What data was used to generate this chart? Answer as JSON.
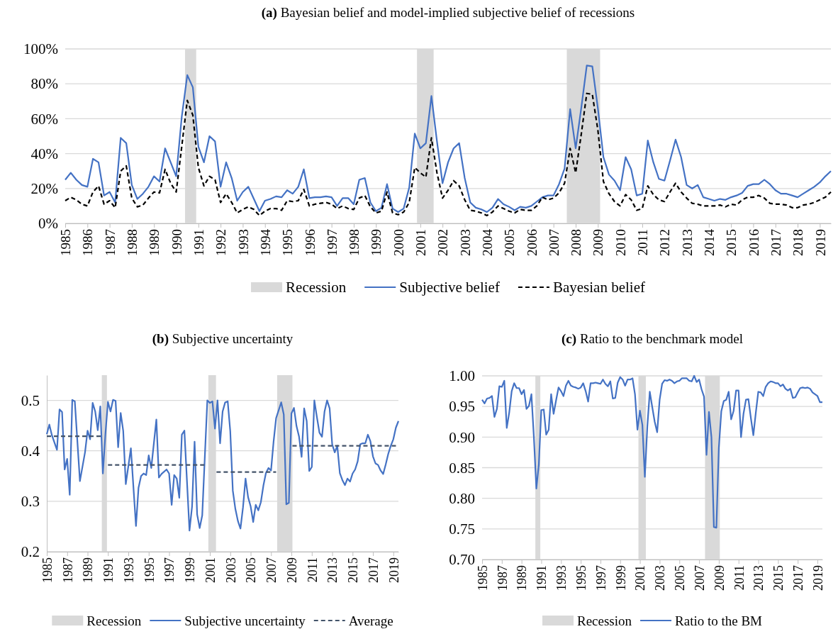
{
  "chart_data": [
    {
      "type": "line",
      "title": "(a) Bayesian belief and model-implied subjective belief of recessions",
      "legend": "bottom",
      "grid": "y",
      "x": [
        1985,
        1985.25,
        1985.5,
        1985.75,
        1986,
        1986.25,
        1986.5,
        1986.75,
        1987,
        1987.25,
        1987.5,
        1987.75,
        1988,
        1988.25,
        1988.5,
        1988.75,
        1989,
        1989.25,
        1989.5,
        1989.75,
        1990,
        1990.25,
        1990.5,
        1990.75,
        1991,
        1991.25,
        1991.5,
        1991.75,
        1992,
        1992.25,
        1992.5,
        1992.75,
        1993,
        1993.25,
        1993.5,
        1993.75,
        1994,
        1994.25,
        1994.5,
        1994.75,
        1995,
        1995.25,
        1995.5,
        1995.75,
        1996,
        1996.25,
        1996.5,
        1996.75,
        1997,
        1997.25,
        1997.5,
        1997.75,
        1998,
        1998.25,
        1998.5,
        1998.75,
        1999,
        1999.25,
        1999.5,
        1999.75,
        2000,
        2000.25,
        2000.5,
        2000.75,
        2001,
        2001.25,
        2001.5,
        2001.75,
        2002,
        2002.25,
        2002.5,
        2002.75,
        2003,
        2003.25,
        2003.5,
        2003.75,
        2004,
        2004.25,
        2004.5,
        2004.75,
        2005,
        2005.25,
        2005.5,
        2005.75,
        2006,
        2006.25,
        2006.5,
        2006.75,
        2007,
        2007.25,
        2007.5,
        2007.75,
        2008,
        2008.25,
        2008.5,
        2008.75,
        2009,
        2009.25,
        2009.5,
        2009.75,
        2010,
        2010.25,
        2010.5,
        2010.75,
        2011,
        2011.25,
        2011.5,
        2011.75,
        2012,
        2012.25,
        2012.5,
        2012.75,
        2013,
        2013.25,
        2013.5,
        2013.75,
        2014,
        2014.25,
        2014.5,
        2014.75,
        2015,
        2015.25,
        2015.5,
        2015.75,
        2016,
        2016.25,
        2016.5,
        2016.75,
        2017,
        2017.25,
        2017.5,
        2017.75,
        2018,
        2018.25,
        2018.5,
        2018.75,
        2019,
        2019.25,
        2019.5
      ],
      "xlim": [
        1985,
        2019.5
      ],
      "xticks": [
        1985,
        1986,
        1987,
        1988,
        1989,
        1990,
        1991,
        1992,
        1993,
        1994,
        1995,
        1996,
        1997,
        1998,
        1999,
        2000,
        2001,
        2002,
        2003,
        2004,
        2005,
        2006,
        2007,
        2008,
        2009,
        2010,
        2011,
        2012,
        2013,
        2014,
        2015,
        2016,
        2017,
        2018,
        2019
      ],
      "ylim": [
        0,
        100
      ],
      "yticks": [
        {
          "value": 0,
          "label": "0%"
        },
        {
          "value": 20,
          "label": "20%"
        },
        {
          "value": 40,
          "label": "40%"
        },
        {
          "value": 60,
          "label": "60%"
        },
        {
          "value": 80,
          "label": "80%"
        },
        {
          "value": 100,
          "label": "100%"
        }
      ],
      "bands": [
        {
          "axis": "x",
          "from": 1990.4,
          "to": 1990.9,
          "label": "Recession",
          "color": "#d9d9d9"
        },
        {
          "axis": "x",
          "from": 2000.85,
          "to": 2001.6,
          "color": "#d9d9d9"
        },
        {
          "axis": "x",
          "from": 2007.6,
          "to": 2009.1,
          "color": "#d9d9d9"
        }
      ],
      "series": [
        {
          "name": "Subjective belief",
          "color": "#4472c4",
          "line_style": "solid",
          "values": [
            25,
            29,
            25,
            22,
            21,
            37,
            35,
            16,
            18,
            12,
            49,
            46,
            22,
            14,
            17,
            21,
            27,
            24,
            43,
            35,
            27,
            61,
            85,
            78,
            44,
            35,
            50,
            47,
            21,
            35,
            26,
            13,
            18,
            21,
            14,
            7,
            13,
            14,
            15.5,
            15,
            19,
            17,
            21,
            31,
            14.5,
            15,
            15,
            15.5,
            15,
            10,
            14.5,
            14.5,
            11,
            25,
            26,
            12,
            7,
            9,
            22.5,
            8.5,
            6.5,
            8.5,
            20.5,
            51.5,
            43,
            46,
            73,
            47,
            23,
            35,
            43,
            46,
            26,
            12,
            9,
            8,
            6.5,
            9,
            14,
            11,
            9.5,
            7.5,
            9.5,
            9,
            10,
            12.5,
            15,
            16,
            16,
            22.5,
            31.5,
            65.5,
            43,
            66,
            90.5,
            90,
            66,
            38,
            28,
            24.5,
            19,
            38,
            31,
            16,
            17,
            47.5,
            35,
            25.5,
            24.5,
            36,
            48,
            38,
            22,
            20,
            22,
            15,
            14,
            13,
            14,
            13.5,
            15,
            16,
            17.5,
            21.5,
            22.5,
            22.5,
            25,
            22.5,
            19,
            17,
            17,
            16,
            15,
            17,
            19,
            21,
            23.5,
            27,
            30
          ]
        },
        {
          "name": "Bayesian belief",
          "color": "#000000",
          "line_style": "dashed",
          "values": [
            13,
            15,
            13.5,
            11,
            10,
            18,
            21.5,
            11,
            13,
            9,
            30,
            33,
            14.5,
            9.5,
            10.5,
            14.5,
            18,
            17.5,
            31,
            23,
            18,
            44,
            70.5,
            62,
            32,
            21.5,
            27,
            25,
            12,
            17,
            12,
            6,
            8,
            9.5,
            8,
            4.5,
            7,
            8.5,
            8.5,
            7.5,
            13,
            12.5,
            13,
            19.5,
            10,
            11,
            11.5,
            12,
            11,
            8.5,
            10,
            8.5,
            8,
            14.5,
            16,
            9.5,
            6,
            7,
            18,
            6,
            5,
            6.5,
            12,
            32,
            29,
            26.5,
            49,
            29,
            14.5,
            19,
            24.5,
            21.5,
            13.5,
            7.5,
            7,
            6,
            4.5,
            6.5,
            10,
            8.5,
            7,
            6,
            8,
            7.5,
            7.5,
            10,
            15,
            13.5,
            14.5,
            17.5,
            23,
            43,
            29,
            51,
            74.5,
            74,
            53.5,
            24,
            17,
            12.5,
            10,
            16.5,
            13.5,
            7.5,
            8.5,
            21.5,
            16.5,
            13.5,
            12.5,
            18,
            23,
            18,
            14.5,
            11.5,
            11,
            10,
            10,
            10,
            10.5,
            9.5,
            11,
            10.5,
            13.5,
            15,
            15,
            16,
            14.5,
            11.5,
            11,
            11,
            10.5,
            9,
            9,
            10.5,
            11,
            12,
            13.5,
            15,
            18
          ]
        }
      ]
    },
    {
      "type": "line",
      "title": "(b) Subjective uncertainty",
      "legend": "bottom",
      "grid": "y",
      "xlim": [
        1985,
        2019.5
      ],
      "xticks": [
        1985,
        1987,
        1989,
        1991,
        1993,
        1995,
        1997,
        1999,
        2001,
        2003,
        2005,
        2007,
        2009,
        2011,
        2013,
        2015,
        2017,
        2019
      ],
      "ylim": [
        0.2,
        0.55
      ],
      "yticks": [
        0.2,
        0.3,
        0.4,
        0.5
      ],
      "bands": [
        {
          "axis": "x",
          "from": 1990.4,
          "to": 1990.9,
          "color": "#d9d9d9"
        },
        {
          "axis": "x",
          "from": 2000.85,
          "to": 2001.6,
          "color": "#d9d9d9"
        },
        {
          "axis": "x",
          "from": 2007.6,
          "to": 2009.1,
          "label": "Recession",
          "color": "#d9d9d9"
        }
      ],
      "series": [
        {
          "name": "Subjective uncertainty",
          "color": "#4472c4",
          "line_style": "solid",
          "x": [
            1985,
            1985.25,
            1985.5,
            1986,
            1986.25,
            1986.5,
            1986.75,
            1987,
            1987.25,
            1987.5,
            1987.75,
            1988.25,
            1988.75,
            1989,
            1989.25,
            1989.5,
            1989.75,
            1990,
            1990.25,
            1990.5,
            1990.75,
            1991,
            1991.25,
            1991.5,
            1991.75,
            1992,
            1992.25,
            1992.5,
            1992.75,
            1993.25,
            1993.75,
            1994,
            1994.25,
            1994.5,
            1994.75,
            1995,
            1995.25,
            1995.75,
            1996,
            1996.25,
            1996.75,
            1997,
            1997.25,
            1997.5,
            1997.75,
            1998,
            1998.25,
            1998.5,
            1999,
            1999.25,
            1999.5,
            1999.75,
            2000,
            2000.25,
            2000.75,
            2001,
            2001.25,
            2001.5,
            2001.75,
            2002,
            2002.25,
            2002.5,
            2002.75,
            2003,
            2003.25,
            2003.5,
            2003.75,
            2004,
            2004.25,
            2004.5,
            2004.75,
            2005,
            2005.25,
            2005.5,
            2005.75,
            2006,
            2006.25,
            2006.5,
            2006.75,
            2007,
            2007.25,
            2007.5,
            2008,
            2008.25,
            2008.5,
            2008.75,
            2009,
            2009.25,
            2009.5,
            2009.75,
            2010,
            2010.25,
            2010.5,
            2010.75,
            2011,
            2011.25,
            2011.5,
            2011.75,
            2012,
            2012.25,
            2012.5,
            2012.75,
            2013,
            2013.25,
            2013.5,
            2013.75,
            2014,
            2014.25,
            2014.5,
            2014.75,
            2015,
            2015.25,
            2015.5,
            2015.75,
            2016,
            2016.25,
            2016.5,
            2016.75,
            2017,
            2017.25,
            2017.5,
            2017.75,
            2018,
            2018.25,
            2018.5,
            2018.75,
            2019,
            2019.25,
            2019.5
          ],
          "values": [
            0.433,
            0.452,
            0.431,
            0.402,
            0.482,
            0.477,
            0.363,
            0.384,
            0.313,
            0.501,
            0.498,
            0.34,
            0.397,
            0.44,
            0.423,
            0.495,
            0.478,
            0.441,
            0.488,
            0.355,
            0.433,
            0.497,
            0.478,
            0.501,
            0.499,
            0.407,
            0.475,
            0.439,
            0.334,
            0.405,
            0.251,
            0.327,
            0.35,
            0.355,
            0.352,
            0.391,
            0.366,
            0.462,
            0.347,
            0.354,
            0.363,
            0.355,
            0.293,
            0.352,
            0.345,
            0.307,
            0.432,
            0.44,
            0.242,
            0.289,
            0.418,
            0.274,
            0.247,
            0.272,
            0.5,
            0.495,
            0.498,
            0.444,
            0.5,
            0.415,
            0.478,
            0.496,
            0.498,
            0.439,
            0.321,
            0.285,
            0.261,
            0.246,
            0.288,
            0.345,
            0.308,
            0.29,
            0.259,
            0.293,
            0.282,
            0.298,
            0.331,
            0.356,
            0.366,
            0.361,
            0.418,
            0.465,
            0.496,
            0.472,
            0.294,
            0.297,
            0.474,
            0.485,
            0.449,
            0.428,
            0.388,
            0.484,
            0.459,
            0.36,
            0.368,
            0.5,
            0.467,
            0.436,
            0.428,
            0.478,
            0.5,
            0.484,
            0.413,
            0.397,
            0.41,
            0.356,
            0.342,
            0.332,
            0.345,
            0.339,
            0.355,
            0.363,
            0.379,
            0.413,
            0.415,
            0.415,
            0.432,
            0.419,
            0.389,
            0.375,
            0.372,
            0.361,
            0.354,
            0.373,
            0.394,
            0.41,
            0.423,
            0.446,
            0.459
          ]
        },
        {
          "name": "Average",
          "color": "#44546a",
          "line_style": "dashed",
          "x": [
            1985,
            1990.4,
            1990.7,
            1991,
            2000.7,
            2001.2,
            2001.65,
            2007.5,
            2008.5,
            2009.1,
            2019.5
          ],
          "values": [
            0.429,
            0.429,
            null,
            0.372,
            0.372,
            null,
            0.358,
            0.358,
            null,
            0.41,
            0.41
          ]
        }
      ]
    },
    {
      "type": "line",
      "title": "(c) Ratio to the benchmark model",
      "legend": "bottom",
      "grid": "y",
      "x": [
        1985,
        1985.25,
        1985.5,
        1985.75,
        1986,
        1986.25,
        1986.5,
        1986.75,
        1987,
        1987.25,
        1987.5,
        1987.75,
        1988,
        1988.25,
        1988.5,
        1988.75,
        1989,
        1989.25,
        1989.5,
        1989.75,
        1990,
        1990.25,
        1990.5,
        1990.75,
        1991,
        1991.25,
        1991.5,
        1991.75,
        1992,
        1992.25,
        1992.5,
        1992.75,
        1993,
        1993.25,
        1993.5,
        1993.75,
        1994,
        1994.25,
        1994.5,
        1994.75,
        1995,
        1995.25,
        1995.5,
        1995.75,
        1996,
        1996.25,
        1996.5,
        1996.75,
        1997,
        1997.25,
        1997.5,
        1997.75,
        1998,
        1998.25,
        1998.5,
        1998.75,
        1999,
        1999.25,
        1999.5,
        1999.75,
        2000,
        2000.25,
        2000.5,
        2000.75,
        2001,
        2001.25,
        2001.5,
        2001.75,
        2002,
        2002.25,
        2002.5,
        2002.75,
        2003,
        2003.25,
        2003.5,
        2003.75,
        2004,
        2004.25,
        2004.5,
        2004.75,
        2005,
        2005.25,
        2005.5,
        2005.75,
        2006,
        2006.25,
        2006.5,
        2006.75,
        2007,
        2007.25,
        2007.5,
        2007.75,
        2008,
        2008.25,
        2008.5,
        2008.75,
        2009,
        2009.25,
        2009.5,
        2009.75,
        2010,
        2010.25,
        2010.5,
        2010.75,
        2011,
        2011.25,
        2011.5,
        2011.75,
        2012,
        2012.25,
        2012.5,
        2012.75,
        2013,
        2013.25,
        2013.5,
        2013.75,
        2014,
        2014.25,
        2014.5,
        2014.75,
        2015,
        2015.25,
        2015.5,
        2015.75,
        2016,
        2016.25,
        2016.5,
        2016.75,
        2017,
        2017.25,
        2017.5,
        2017.75,
        2018,
        2018.25,
        2018.5,
        2018.75,
        2019,
        2019.25,
        2019.5
      ],
      "xlim": [
        1985,
        2019.5
      ],
      "xticks": [
        1985,
        1987,
        1989,
        1991,
        1993,
        1995,
        1997,
        1999,
        2001,
        2003,
        2005,
        2007,
        2009,
        2011,
        2013,
        2015,
        2017,
        2019
      ],
      "ylim": [
        0.7,
        1.0
      ],
      "yticks": [
        {
          "value": 0.7,
          "label": "0.70"
        },
        {
          "value": 0.75,
          "label": "0.75"
        },
        {
          "value": 0.8,
          "label": "0.80"
        },
        {
          "value": 0.85,
          "label": "0.85"
        },
        {
          "value": 0.9,
          "label": "0.90"
        },
        {
          "value": 0.95,
          "label": "0.95"
        },
        {
          "value": 1.0,
          "label": "1.00"
        }
      ],
      "bands": [
        {
          "axis": "x",
          "from": 1990.4,
          "to": 1990.9,
          "label": "Recession",
          "color": "#d9d9d9"
        },
        {
          "axis": "x",
          "from": 2000.85,
          "to": 2001.6,
          "color": "#d9d9d9"
        },
        {
          "axis": "x",
          "from": 2007.6,
          "to": 2009.1,
          "color": "#d9d9d9"
        }
      ],
      "series": [
        {
          "name": "Ratio to the BM",
          "color": "#4472c4",
          "line_style": "solid",
          "values": [
            0.961,
            0.955,
            0.963,
            0.964,
            0.967,
            0.933,
            0.946,
            0.983,
            0.982,
            0.992,
            0.915,
            0.94,
            0.975,
            0.988,
            0.98,
            0.98,
            0.97,
            0.977,
            0.946,
            0.951,
            0.97,
            0.9,
            0.816,
            0.855,
            0.944,
            0.945,
            0.904,
            0.912,
            0.97,
            0.938,
            0.96,
            0.981,
            0.975,
            0.967,
            0.984,
            0.992,
            0.984,
            0.982,
            0.981,
            0.979,
            0.981,
            0.988,
            0.975,
            0.958,
            0.988,
            0.988,
            0.989,
            0.988,
            0.987,
            0.994,
            0.987,
            0.983,
            0.991,
            0.963,
            0.964,
            0.989,
            0.998,
            0.994,
            0.984,
            0.994,
            0.994,
            0.996,
            0.97,
            0.912,
            0.943,
            0.92,
            0.835,
            0.917,
            0.974,
            0.949,
            0.925,
            0.908,
            0.961,
            0.987,
            0.993,
            0.992,
            0.994,
            0.992,
            0.988,
            0.991,
            0.992,
            0.996,
            0.996,
            0.996,
            0.992,
            0.991,
            1.0,
            0.99,
            0.994,
            0.978,
            0.966,
            0.871,
            0.941,
            0.9,
            0.753,
            0.752,
            0.882,
            0.942,
            0.959,
            0.961,
            0.974,
            0.929,
            0.943,
            0.976,
            0.976,
            0.9,
            0.938,
            0.961,
            0.962,
            0.931,
            0.903,
            0.94,
            0.974,
            0.973,
            0.967,
            0.982,
            0.988,
            0.991,
            0.99,
            0.988,
            0.988,
            0.983,
            0.986,
            0.979,
            0.976,
            0.979,
            0.964,
            0.965,
            0.973,
            0.98,
            0.981,
            0.98,
            0.981,
            0.979,
            0.973,
            0.97,
            0.967,
            0.957,
            0.957
          ]
        }
      ]
    }
  ]
}
